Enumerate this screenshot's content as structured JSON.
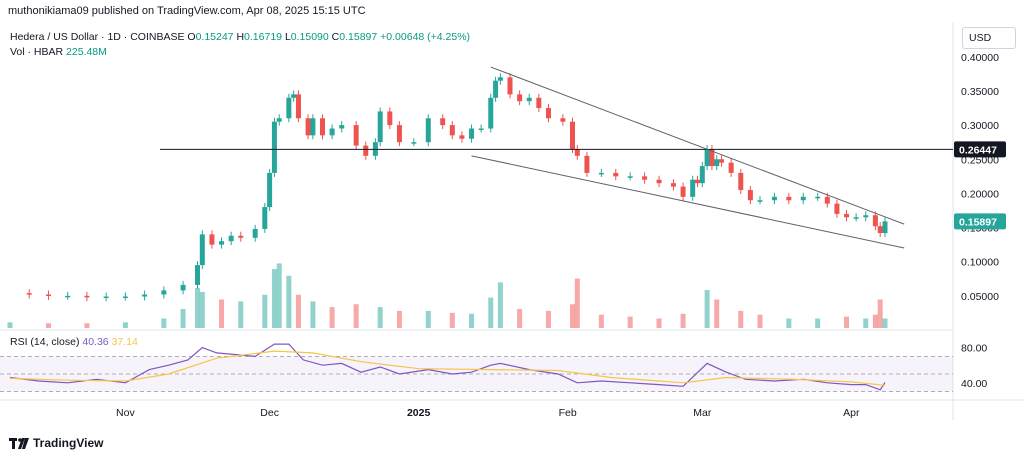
{
  "header": {
    "publisher": "muthonikiama09 published on TradingView.com, Apr 08, 2025 15:15 UTC",
    "symbol": "Hedera / US Dollar · 1D · COINBASE",
    "o_label": "O",
    "o_value": "0.15247",
    "h_label": "H",
    "h_value": "0.16719",
    "l_label": "L",
    "l_value": "0.15090",
    "c_label": "C",
    "c_value": "0.15897",
    "change": "+0.00648 (+4.25%)",
    "vol_label": "Vol · HBAR",
    "vol_value": "225.48M",
    "currency": "USD"
  },
  "rsi": {
    "label": "RSI (14, close)",
    "value": "40.36",
    "ma_value": "37.14"
  },
  "brand": {
    "name": "TradingView"
  },
  "colors": {
    "up": "#26a69a",
    "down": "#ef5350",
    "rsi": "#7e57c2",
    "rsi_ma": "#f7c548",
    "accent": "#131722"
  },
  "chart_data": [
    {
      "type": "candlestick",
      "title": "Hedera / US Dollar · 1D · COINBASE",
      "y_ticks": [
        "0.40000",
        "0.35000",
        "0.30000",
        "0.25000",
        "0.20000",
        "0.15000",
        "0.10000",
        "0.05000"
      ],
      "y_tick_values": [
        0.4,
        0.35,
        0.3,
        0.25,
        0.2,
        0.15,
        0.1,
        0.05
      ],
      "x_ticks": [
        "Nov",
        "Dec",
        "2025",
        "Feb",
        "Mar",
        "Apr"
      ],
      "x_tick_dates": [
        "2024-11-01",
        "2024-12-01",
        "2025-01-01",
        "2025-02-01",
        "2025-03-01",
        "2025-04-01"
      ],
      "ylim": [
        0.0,
        0.4
      ],
      "price_markers": [
        {
          "value": "0.26447",
          "price": 0.26447,
          "style": "dark"
        },
        {
          "value": "0.15897",
          "price": 0.15897,
          "style": "up"
        }
      ],
      "horizontal_line": {
        "price": 0.26447
      },
      "trend_lines": [
        {
          "from": [
            "2025-01-16",
            0.385
          ],
          "to": [
            "2025-04-12",
            0.155
          ]
        },
        {
          "from": [
            "2025-01-12",
            0.255
          ],
          "to": [
            "2025-04-12",
            0.12
          ]
        }
      ],
      "close_series": [
        [
          "2024-10-08",
          0.054
        ],
        [
          "2024-10-12",
          0.052
        ],
        [
          "2024-10-16",
          0.05
        ],
        [
          "2024-10-20",
          0.05
        ],
        [
          "2024-10-24",
          0.048
        ],
        [
          "2024-10-28",
          0.049
        ],
        [
          "2024-11-01",
          0.049
        ],
        [
          "2024-11-05",
          0.052
        ],
        [
          "2024-11-09",
          0.058
        ],
        [
          "2024-11-13",
          0.066
        ],
        [
          "2024-11-16",
          0.095
        ],
        [
          "2024-11-17",
          0.14
        ],
        [
          "2024-11-19",
          0.125
        ],
        [
          "2024-11-21",
          0.13
        ],
        [
          "2024-11-23",
          0.138
        ],
        [
          "2024-11-25",
          0.135
        ],
        [
          "2024-11-28",
          0.148
        ],
        [
          "2024-11-30",
          0.18
        ],
        [
          "2024-12-01",
          0.23
        ],
        [
          "2024-12-02",
          0.305
        ],
        [
          "2024-12-03",
          0.31
        ],
        [
          "2024-12-05",
          0.34
        ],
        [
          "2024-12-06",
          0.345
        ],
        [
          "2024-12-07",
          0.31
        ],
        [
          "2024-12-09",
          0.285
        ],
        [
          "2024-12-10",
          0.31
        ],
        [
          "2024-12-12",
          0.285
        ],
        [
          "2024-12-14",
          0.295
        ],
        [
          "2024-12-16",
          0.3
        ],
        [
          "2024-12-19",
          0.27
        ],
        [
          "2024-12-21",
          0.255
        ],
        [
          "2024-12-23",
          0.275
        ],
        [
          "2024-12-24",
          0.32
        ],
        [
          "2024-12-26",
          0.3
        ],
        [
          "2024-12-28",
          0.275
        ],
        [
          "2024-12-31",
          0.275
        ],
        [
          "2025-01-03",
          0.31
        ],
        [
          "2025-01-06",
          0.3
        ],
        [
          "2025-01-08",
          0.285
        ],
        [
          "2025-01-10",
          0.28
        ],
        [
          "2025-01-12",
          0.295
        ],
        [
          "2025-01-14",
          0.295
        ],
        [
          "2025-01-16",
          0.34
        ],
        [
          "2025-01-17",
          0.365
        ],
        [
          "2025-01-18",
          0.37
        ],
        [
          "2025-01-20",
          0.345
        ],
        [
          "2025-01-22",
          0.335
        ],
        [
          "2025-01-24",
          0.34
        ],
        [
          "2025-01-26",
          0.325
        ],
        [
          "2025-01-28",
          0.31
        ],
        [
          "2025-01-31",
          0.305
        ],
        [
          "2025-02-02",
          0.265
        ],
        [
          "2025-02-03",
          0.255
        ],
        [
          "2025-02-05",
          0.23
        ],
        [
          "2025-02-08",
          0.23
        ],
        [
          "2025-02-11",
          0.225
        ],
        [
          "2025-02-14",
          0.225
        ],
        [
          "2025-02-17",
          0.22
        ],
        [
          "2025-02-20",
          0.215
        ],
        [
          "2025-02-23",
          0.21
        ],
        [
          "2025-02-25",
          0.195
        ],
        [
          "2025-02-27",
          0.22
        ],
        [
          "2025-02-28",
          0.215
        ],
        [
          "2025-03-01",
          0.24
        ],
        [
          "2025-03-02",
          0.265
        ],
        [
          "2025-03-03",
          0.24
        ],
        [
          "2025-03-04",
          0.25
        ],
        [
          "2025-03-05",
          0.245
        ],
        [
          "2025-03-07",
          0.23
        ],
        [
          "2025-03-09",
          0.205
        ],
        [
          "2025-03-11",
          0.19
        ],
        [
          "2025-03-13",
          0.19
        ],
        [
          "2025-03-16",
          0.195
        ],
        [
          "2025-03-19",
          0.19
        ],
        [
          "2025-03-22",
          0.195
        ],
        [
          "2025-03-25",
          0.195
        ],
        [
          "2025-03-27",
          0.185
        ],
        [
          "2025-03-29",
          0.17
        ],
        [
          "2025-03-31",
          0.165
        ],
        [
          "2025-04-02",
          0.165
        ],
        [
          "2025-04-04",
          0.168
        ],
        [
          "2025-04-06",
          0.152
        ],
        [
          "2025-04-07",
          0.142
        ],
        [
          "2025-04-08",
          0.159
        ]
      ],
      "volume_series": [
        [
          "2024-10-08",
          6
        ],
        [
          "2024-10-16",
          5
        ],
        [
          "2024-10-24",
          5
        ],
        [
          "2024-11-01",
          6
        ],
        [
          "2024-11-09",
          10
        ],
        [
          "2024-11-13",
          20
        ],
        [
          "2024-11-16",
          42
        ],
        [
          "2024-11-17",
          38
        ],
        [
          "2024-11-21",
          30
        ],
        [
          "2024-11-25",
          28
        ],
        [
          "2024-11-30",
          35
        ],
        [
          "2024-12-02",
          62
        ],
        [
          "2024-12-03",
          68
        ],
        [
          "2024-12-05",
          55
        ],
        [
          "2024-12-07",
          35
        ],
        [
          "2024-12-10",
          28
        ],
        [
          "2024-12-14",
          22
        ],
        [
          "2024-12-19",
          25
        ],
        [
          "2024-12-24",
          22
        ],
        [
          "2024-12-28",
          18
        ],
        [
          "2025-01-03",
          18
        ],
        [
          "2025-01-08",
          16
        ],
        [
          "2025-01-12",
          15
        ],
        [
          "2025-01-16",
          32
        ],
        [
          "2025-01-18",
          48
        ],
        [
          "2025-01-22",
          20
        ],
        [
          "2025-01-28",
          18
        ],
        [
          "2025-02-02",
          25
        ],
        [
          "2025-02-03",
          52
        ],
        [
          "2025-02-08",
          14
        ],
        [
          "2025-02-14",
          12
        ],
        [
          "2025-02-20",
          10
        ],
        [
          "2025-02-25",
          15
        ],
        [
          "2025-03-02",
          40
        ],
        [
          "2025-03-04",
          30
        ],
        [
          "2025-03-09",
          18
        ],
        [
          "2025-03-13",
          14
        ],
        [
          "2025-03-19",
          10
        ],
        [
          "2025-03-25",
          10
        ],
        [
          "2025-03-31",
          12
        ],
        [
          "2025-04-04",
          10
        ],
        [
          "2025-04-06",
          14
        ],
        [
          "2025-04-07",
          30
        ],
        [
          "2025-04-08",
          10
        ]
      ]
    },
    {
      "type": "line",
      "title": "RSI (14, close)",
      "y_ticks": [
        "80.00",
        "40.00"
      ],
      "y_tick_values": [
        80,
        40
      ],
      "ylim": [
        20,
        90
      ],
      "band": [
        30,
        70
      ],
      "series": [
        {
          "name": "RSI",
          "points": [
            [
              "2024-10-08",
              46
            ],
            [
              "2024-10-14",
              42
            ],
            [
              "2024-10-20",
              40
            ],
            [
              "2024-10-26",
              44
            ],
            [
              "2024-11-01",
              40
            ],
            [
              "2024-11-06",
              55
            ],
            [
              "2024-11-10",
              60
            ],
            [
              "2024-11-14",
              66
            ],
            [
              "2024-11-17",
              80
            ],
            [
              "2024-11-20",
              74
            ],
            [
              "2024-11-24",
              72
            ],
            [
              "2024-11-28",
              70
            ],
            [
              "2024-12-02",
              84
            ],
            [
              "2024-12-05",
              84
            ],
            [
              "2024-12-08",
              66
            ],
            [
              "2024-12-12",
              60
            ],
            [
              "2024-12-16",
              62
            ],
            [
              "2024-12-20",
              52
            ],
            [
              "2024-12-24",
              58
            ],
            [
              "2024-12-28",
              50
            ],
            [
              "2025-01-03",
              55
            ],
            [
              "2025-01-08",
              50
            ],
            [
              "2025-01-12",
              52
            ],
            [
              "2025-01-16",
              60
            ],
            [
              "2025-01-18",
              62
            ],
            [
              "2025-01-24",
              55
            ],
            [
              "2025-01-30",
              50
            ],
            [
              "2025-02-03",
              40
            ],
            [
              "2025-02-08",
              42
            ],
            [
              "2025-02-14",
              40
            ],
            [
              "2025-02-20",
              38
            ],
            [
              "2025-02-25",
              36
            ],
            [
              "2025-03-02",
              62
            ],
            [
              "2025-03-06",
              52
            ],
            [
              "2025-03-10",
              44
            ],
            [
              "2025-03-16",
              42
            ],
            [
              "2025-03-22",
              44
            ],
            [
              "2025-03-27",
              40
            ],
            [
              "2025-04-01",
              38
            ],
            [
              "2025-04-04",
              38
            ],
            [
              "2025-04-07",
              32
            ],
            [
              "2025-04-08",
              40.36
            ]
          ]
        },
        {
          "name": "MA",
          "points": [
            [
              "2024-10-08",
              45
            ],
            [
              "2024-10-20",
              43
            ],
            [
              "2024-11-01",
              42
            ],
            [
              "2024-11-10",
              50
            ],
            [
              "2024-11-20",
              68
            ],
            [
              "2024-12-02",
              76
            ],
            [
              "2024-12-10",
              74
            ],
            [
              "2024-12-20",
              64
            ],
            [
              "2025-01-01",
              56
            ],
            [
              "2025-01-16",
              55
            ],
            [
              "2025-01-30",
              54
            ],
            [
              "2025-02-10",
              46
            ],
            [
              "2025-02-25",
              40
            ],
            [
              "2025-03-06",
              46
            ],
            [
              "2025-03-20",
              44
            ],
            [
              "2025-04-01",
              41
            ],
            [
              "2025-04-08",
              37.14
            ]
          ]
        }
      ]
    }
  ]
}
